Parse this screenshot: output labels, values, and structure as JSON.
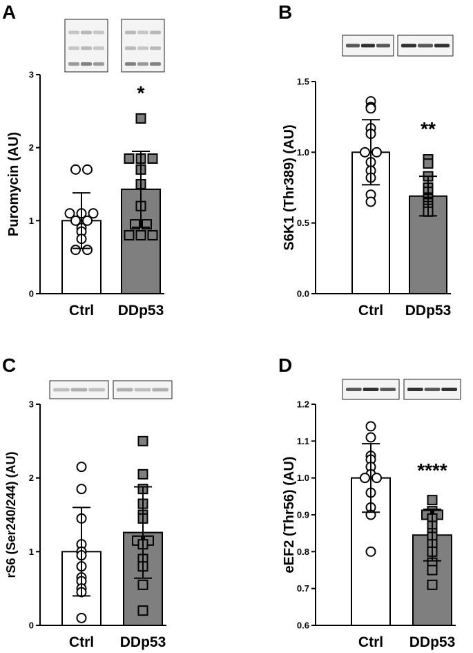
{
  "colors": {
    "ctrl_bar": "#ffffff",
    "ddp53_bar": "#7f7f7f",
    "stroke": "#000000",
    "square_fill": "#7f7f7f"
  },
  "chart_data": [
    {
      "panel": "A",
      "type": "bar",
      "categories": [
        "Ctrl",
        "DDp53"
      ],
      "values": [
        1.0,
        1.43
      ],
      "sd": [
        0.38,
        0.52
      ],
      "points": [
        [
          1.7,
          1.7,
          1.1,
          1.1,
          1.1,
          1.0,
          1.0,
          0.9,
          0.85,
          0.75,
          0.6,
          0.6
        ],
        [
          2.4,
          1.85,
          1.85,
          1.85,
          1.7,
          1.5,
          1.2,
          0.95,
          0.95,
          0.8,
          0.8,
          0.8
        ]
      ],
      "ylabel": "Puromycin (AU)",
      "ylim": [
        0,
        3
      ],
      "yticks": [
        0,
        1,
        2,
        3
      ],
      "ytick_labels": [
        "0",
        "1",
        "2",
        "3"
      ],
      "significance": "*",
      "blot_icon": "western-blot-bands"
    },
    {
      "panel": "B",
      "type": "bar",
      "categories": [
        "Ctrl",
        "DDp53"
      ],
      "values": [
        1.0,
        0.69
      ],
      "sd": [
        0.23,
        0.14
      ],
      "points": [
        [
          1.36,
          1.32,
          1.31,
          1.17,
          1.13,
          1.0,
          1.0,
          0.93,
          0.87,
          0.82,
          0.7,
          0.65
        ],
        [
          0.95,
          0.92,
          0.83,
          0.75,
          0.72,
          0.68,
          0.67,
          0.65,
          0.64,
          0.62,
          0.6,
          0.58
        ]
      ],
      "ylabel": "S6K1 (Thr389) (AU)",
      "ylim": [
        0,
        1.5
      ],
      "yticks": [
        0,
        0.5,
        1.0,
        1.5
      ],
      "ytick_labels": [
        "0.0",
        "0.5",
        "1.0",
        "1.5"
      ],
      "significance": "**",
      "blot_icon": "western-blot-bands"
    },
    {
      "panel": "C",
      "type": "bar",
      "categories": [
        "Ctrl",
        "DDp53"
      ],
      "values": [
        1.0,
        1.26
      ],
      "sd": [
        0.6,
        0.62
      ],
      "points": [
        [
          2.15,
          1.85,
          1.45,
          1.1,
          1.0,
          0.95,
          0.8,
          0.65,
          0.6,
          0.5,
          0.45,
          0.1
        ],
        [
          2.5,
          2.05,
          1.85,
          1.65,
          1.5,
          1.45,
          1.15,
          1.15,
          1.1,
          0.9,
          0.8,
          0.55,
          0.2
        ]
      ],
      "ylabel": "rS6 (Ser240/244) (AU)",
      "ylim": [
        0,
        3
      ],
      "yticks": [
        0,
        1,
        2,
        3
      ],
      "ytick_labels": [
        "0",
        "1",
        "2",
        "3"
      ],
      "significance": "",
      "blot_icon": "western-blot-bands"
    },
    {
      "panel": "D",
      "type": "bar",
      "categories": [
        "Ctrl",
        "DDp53"
      ],
      "values": [
        1.0,
        0.845
      ],
      "sd": [
        0.093,
        0.07
      ],
      "points": [
        [
          1.14,
          1.11,
          1.06,
          1.05,
          1.03,
          1.01,
          1.0,
          1.0,
          0.96,
          0.92,
          0.9,
          0.8
        ],
        [
          0.94,
          0.91,
          0.9,
          0.9,
          0.89,
          0.87,
          0.85,
          0.84,
          0.82,
          0.8,
          0.77,
          0.75,
          0.71
        ]
      ],
      "ylabel": "eEF2 (Thr56) (AU)",
      "ylim": [
        0.6,
        1.2
      ],
      "yticks": [
        0.6,
        0.7,
        0.8,
        0.9,
        1.0,
        1.1,
        1.2
      ],
      "ytick_labels": [
        "0.6",
        "0.7",
        "0.8",
        "0.9",
        "1.0",
        "1.1",
        "1.2"
      ],
      "significance": "****",
      "blot_icon": "western-blot-bands"
    }
  ]
}
